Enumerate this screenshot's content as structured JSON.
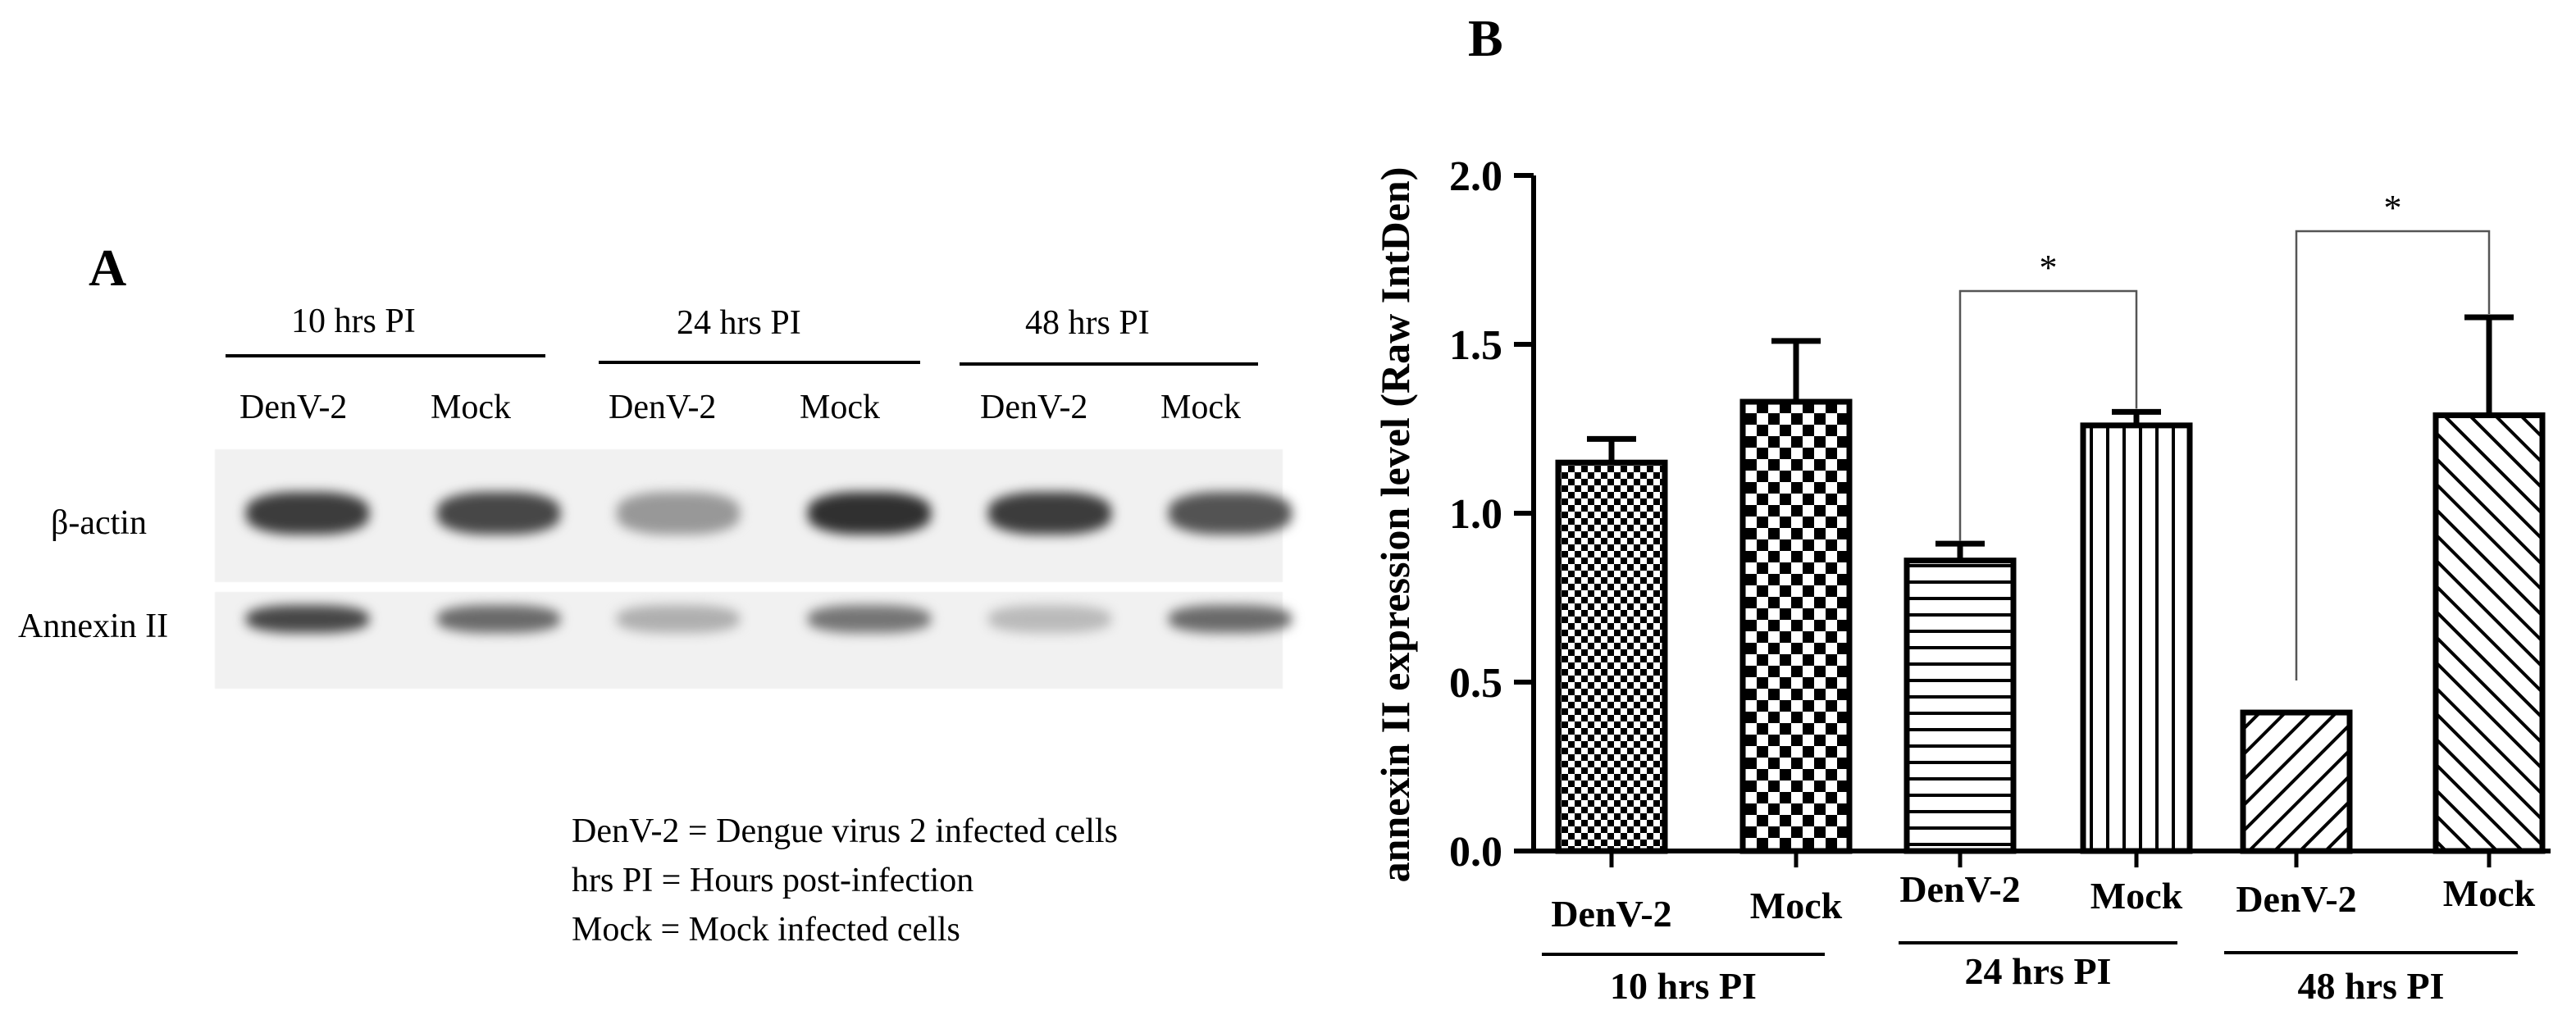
{
  "panel_a": {
    "letter": "A",
    "groups": [
      {
        "label": "10 hrs PI",
        "lanes": [
          "DenV-2",
          "Mock"
        ]
      },
      {
        "label": "24 hrs PI",
        "lanes": [
          "DenV-2",
          "Mock"
        ]
      },
      {
        "label": "48 hrs PI",
        "lanes": [
          "DenV-2",
          "Mock"
        ]
      }
    ],
    "rows": [
      {
        "label": "β-actin",
        "intensity": [
          0.85,
          0.8,
          0.45,
          0.9,
          0.85,
          0.75
        ]
      },
      {
        "label": "Annexin II",
        "intensity": [
          0.8,
          0.65,
          0.35,
          0.6,
          0.3,
          0.65
        ]
      }
    ],
    "legend": [
      "DenV-2 = Dengue virus 2 infected cells",
      "hrs PI = Hours post-infection",
      "Mock = Mock infected cells"
    ]
  },
  "panel_b": {
    "letter": "B"
  },
  "chart_data": {
    "type": "bar",
    "title": "",
    "xlabel": "",
    "ylabel": "annexin II expression level (Raw IntDen)",
    "ylim": [
      0,
      2.0
    ],
    "yticks": [
      "0.0",
      "0.5",
      "1.0",
      "1.5",
      "2.0"
    ],
    "categories": [
      "DenV-2",
      "Mock",
      "DenV-2",
      "Mock",
      "DenV-2",
      "Mock"
    ],
    "groups": [
      "10 hrs PI",
      "24 hrs PI",
      "48 hrs PI"
    ],
    "values": [
      1.15,
      1.33,
      0.86,
      1.26,
      0.41,
      1.29
    ],
    "errors": [
      0.07,
      0.18,
      0.05,
      0.04,
      0.0,
      0.29
    ],
    "patterns": [
      "fine-checker",
      "coarse-checker",
      "horizontal",
      "vertical",
      "diag-right",
      "diag-left"
    ],
    "significance": [
      {
        "from": 2,
        "to": 3,
        "label": "*"
      },
      {
        "from": 4,
        "to": 5,
        "label": "*"
      }
    ]
  }
}
